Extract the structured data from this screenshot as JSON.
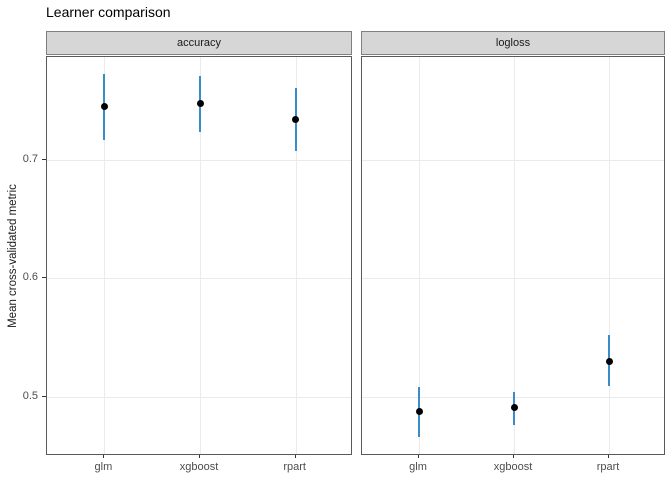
{
  "title": "Learner comparison",
  "y_axis_title": "Mean cross-validated metric",
  "colors": {
    "errorbar": "#3a8cc8",
    "point": "#000000",
    "strip_background": "#d6d6d6",
    "strip_border": "#808080",
    "panel_border": "#595959",
    "gridline": "#ebebeb",
    "tick_label": "#4d4d4d",
    "title": "#000000"
  },
  "chart_data": {
    "type": "scatter",
    "title": "Learner comparison",
    "xlabel": "",
    "ylabel": "Mean cross-validated metric",
    "categories": [
      "glm",
      "xgboost",
      "rpart"
    ],
    "yticks": [
      0.5,
      0.6,
      0.7
    ],
    "ylim": [
      0.45,
      0.787
    ],
    "grid": "major gridlines only, light gray, on white panel",
    "legend": "none",
    "facets": [
      {
        "label": "accuracy",
        "series": [
          {
            "learner": "glm",
            "mean": 0.745,
            "lower": 0.717,
            "upper": 0.773
          },
          {
            "learner": "xgboost",
            "mean": 0.748,
            "lower": 0.724,
            "upper": 0.771
          },
          {
            "learner": "rpart",
            "mean": 0.734,
            "lower": 0.708,
            "upper": 0.761
          }
        ]
      },
      {
        "label": "logloss",
        "series": [
          {
            "learner": "glm",
            "mean": 0.488,
            "lower": 0.466,
            "upper": 0.508
          },
          {
            "learner": "xgboost",
            "mean": 0.491,
            "lower": 0.476,
            "upper": 0.504
          },
          {
            "learner": "rpart",
            "mean": 0.53,
            "lower": 0.509,
            "upper": 0.552
          }
        ]
      }
    ]
  }
}
